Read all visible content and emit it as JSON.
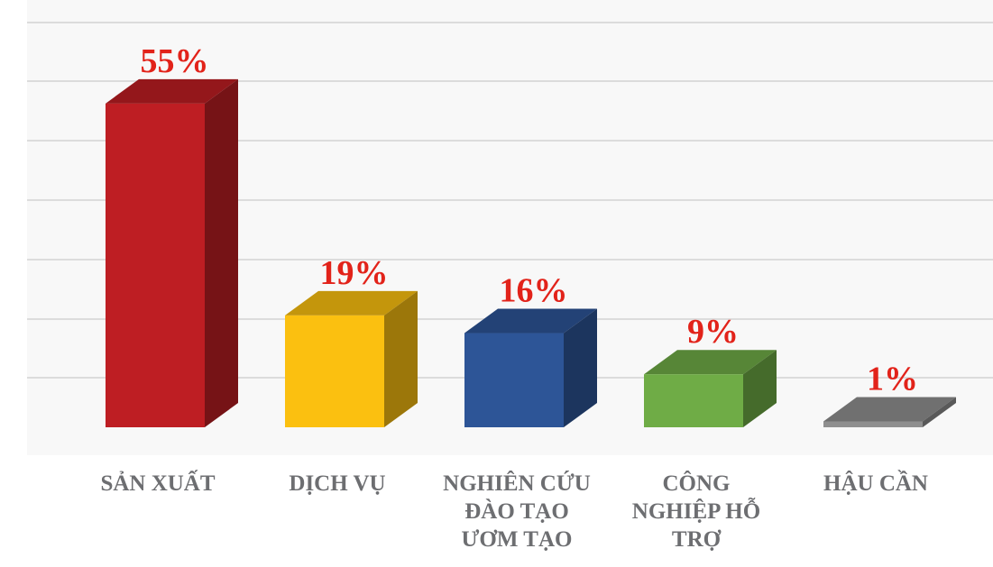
{
  "chart_data": {
    "type": "bar",
    "style": "3d-column",
    "categories": [
      "SẢN XUẤT",
      "DỊCH VỤ",
      "NGHIÊN CỨU\nĐÀO TẠO\nƯƠM TẠO",
      "CÔNG\nNGHIỆP HỖ\nTRỢ",
      "HẬU CẦN"
    ],
    "values": [
      55,
      19,
      16,
      9,
      1
    ],
    "value_labels": [
      "55%",
      "19%",
      "16%",
      "9%",
      "1%"
    ],
    "colors": [
      "#be1e23",
      "#fbc010",
      "#2d5597",
      "#6fac46",
      "#8f8f8f"
    ],
    "ylim": [
      0,
      60
    ],
    "grid": true,
    "legend": "none",
    "title": "",
    "xlabel": "",
    "ylabel": ""
  }
}
